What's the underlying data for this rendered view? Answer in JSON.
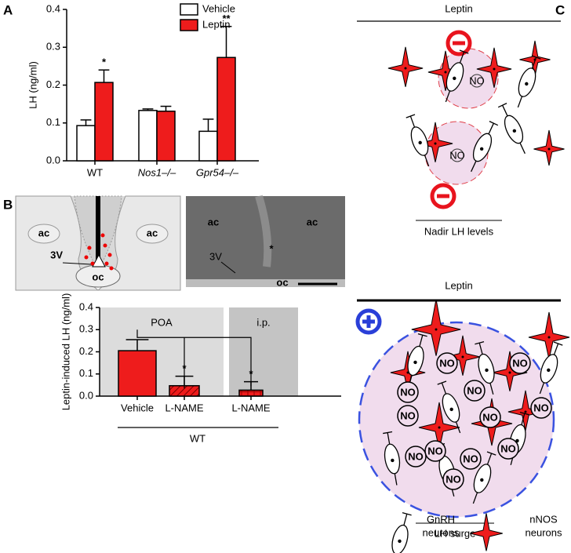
{
  "panels": [
    "A",
    "B",
    "C"
  ],
  "chart_data": [
    {
      "type": "bar",
      "ylabel": "LH (ng/ml)",
      "categories": [
        "WT",
        "Nos1–/–",
        "Gpr54–/–"
      ],
      "series": [
        {
          "name": "Vehicle",
          "color": "#ffffff",
          "values": [
            0.093,
            0.133,
            0.078
          ],
          "errors": [
            0.015,
            0.004,
            0.032
          ],
          "significance": [
            null,
            null,
            null
          ]
        },
        {
          "name": "Leptin",
          "color": "#ee1c1c",
          "values": [
            0.207,
            0.131,
            0.273
          ],
          "errors": [
            0.033,
            0.013,
            0.082
          ],
          "significance": [
            "*",
            null,
            "**"
          ]
        }
      ],
      "ylim": [
        0,
        0.4
      ],
      "yticks": [
        {
          "value": 0,
          "label": "0.0"
        },
        0.1,
        0.2,
        0.3,
        0.4
      ],
      "legend": "top-right"
    },
    {
      "type": "bar",
      "ylabel": "Leptin-induced LH (ng/ml)",
      "categories": [
        "Vehicle",
        "L-NAME",
        "L-NAME"
      ],
      "series": [
        {
          "name": null,
          "color": "#ee1c1c",
          "values": [
            0.205,
            0.047,
            0.027
          ],
          "errors": [
            0.05,
            0.043,
            0.038
          ],
          "significance": [
            null,
            "*",
            "*"
          ]
        }
      ],
      "bands": [
        "POA",
        "i.p."
      ],
      "group_label": "WT",
      "ylim": [
        0,
        0.4
      ],
      "yticks": [
        {
          "value": 0,
          "label": "0.0"
        },
        0.1,
        0.2,
        0.3,
        0.4
      ]
    }
  ],
  "schematic": {
    "left": [
      "ac",
      "ac",
      "3V",
      "oc"
    ],
    "right": [
      "ac",
      "ac",
      "3V",
      "oc"
    ]
  },
  "diagram": {
    "top_title": "Leptin",
    "top_caption": "Nadir LH levels",
    "bottom_title": "Leptin",
    "bottom_caption": "LH surge",
    "no_label": "NO",
    "legend": [
      {
        "lines": [
          "GnRH",
          "neurons"
        ],
        "color": "#000000"
      },
      {
        "lines": [
          "nNOS",
          "neurons"
        ],
        "color": "#ee1c1c"
      }
    ]
  }
}
